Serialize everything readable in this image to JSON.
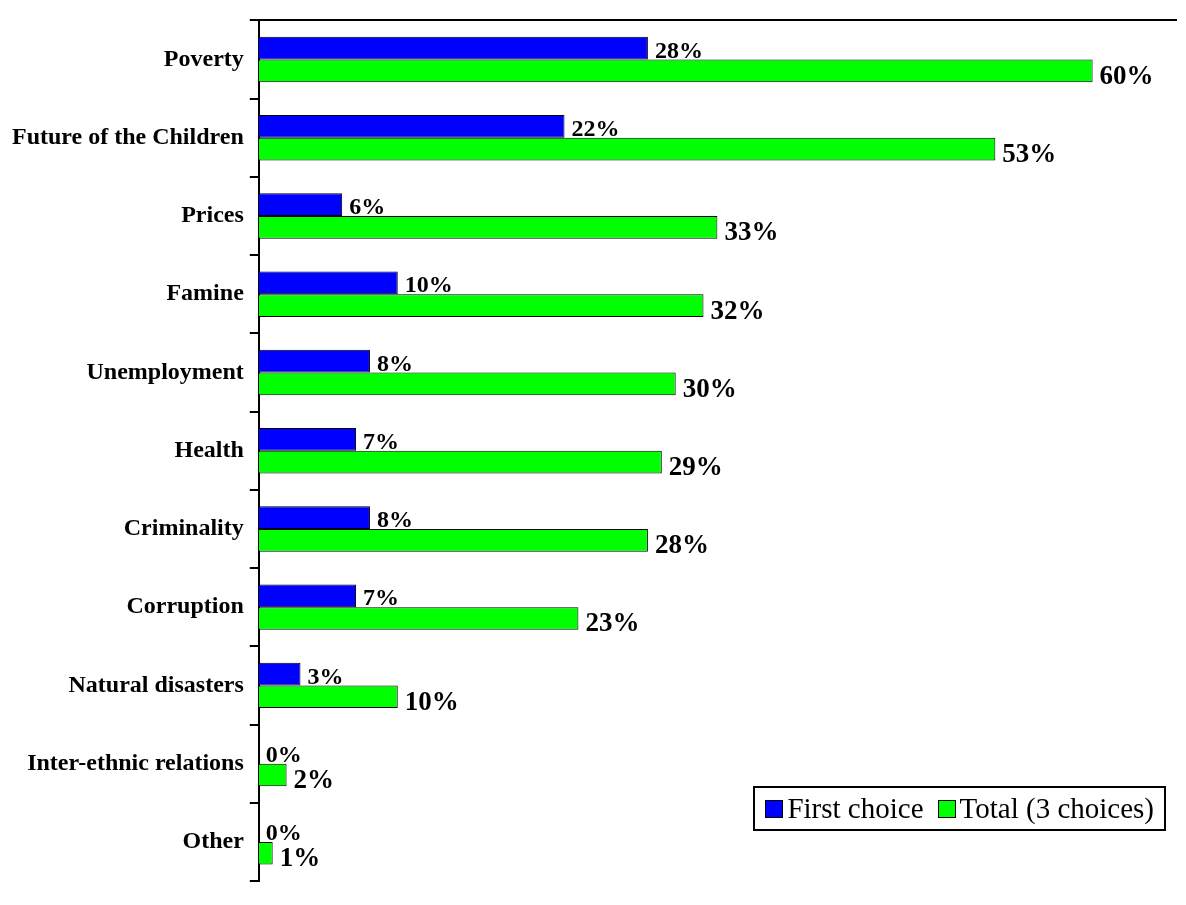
{
  "chart_data": {
    "type": "bar",
    "orientation": "horizontal",
    "categories": [
      "Poverty",
      "Future of the Children",
      "Prices",
      "Famine",
      "Unemployment",
      "Health",
      "Criminality",
      "Corruption",
      "Natural disasters",
      "Inter-ethnic relations",
      "Other"
    ],
    "series": [
      {
        "name": "First choice",
        "color": "#0000ff",
        "values": [
          28,
          22,
          6,
          10,
          8,
          7,
          8,
          7,
          3,
          0,
          0
        ],
        "value_labels": [
          "28%",
          "22%",
          "6%",
          "10%",
          "8%",
          "7%",
          "8%",
          "7%",
          "3%",
          "0%",
          "0%"
        ]
      },
      {
        "name": "Total (3 choices)",
        "color": "#00ff00",
        "values": [
          60,
          53,
          33,
          32,
          30,
          29,
          28,
          23,
          10,
          2,
          1
        ],
        "value_labels": [
          "60%",
          "53%",
          "33%",
          "32%",
          "30%",
          "29%",
          "28%",
          "23%",
          "10%",
          "2%",
          "1%"
        ]
      }
    ],
    "legend": "bottom right",
    "grid": false
  }
}
